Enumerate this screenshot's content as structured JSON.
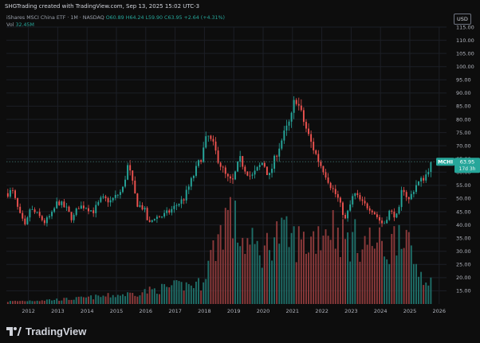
{
  "credit": "SHGTrading created with TradingView.com, Sep 13, 2025 15:02 UTC-3",
  "legend": {
    "title": "iShares MSCI China ETF · 1M · NASDAQ",
    "open": "O60.89",
    "high": "H64.24",
    "low": "L59.90",
    "close": "C63.95",
    "change": "+2.64 (+4.31%)",
    "vol_label": "Vol",
    "vol_value": "32.45M"
  },
  "currency_label": "USD",
  "brand": "TradingView",
  "colors": {
    "up": "#26a69a",
    "down": "#ef5350",
    "up_vol": "#1f6e68",
    "down_vol": "#8c3a3b",
    "background": "#0d0d0d",
    "grid": "#1c1f26",
    "price_tag": "#26a69a"
  },
  "chart_data": {
    "type": "candlestick",
    "title": "iShares MSCI China ETF · 1M · NASDAQ",
    "symbol": "MCHI",
    "last_price": "63.95",
    "countdown": "17d 3h",
    "price_axis": {
      "min": 10,
      "max": 115,
      "ticks": [
        15.0,
        20.0,
        25.0,
        30.0,
        35.0,
        40.0,
        45.0,
        50.0,
        55.0,
        60.0,
        65.0,
        70.0,
        75.0,
        80.0,
        85.0,
        90.0,
        95.0,
        100.0,
        105.0,
        110.0,
        115.0
      ],
      "tick_labels": [
        "15.00",
        "20.00",
        "25.00",
        "30.00",
        "35.00",
        "40.00",
        "45.00",
        "50.00",
        "55.00",
        "60.00",
        "65.00",
        "70.00",
        "75.00",
        "80.00",
        "85.00",
        "90.00",
        "95.00",
        "100.00",
        "105.00",
        "110.00",
        "115.00"
      ]
    },
    "x_axis": {
      "start": 2011.25,
      "end": 2026.25,
      "year_labels": [
        "2012",
        "2013",
        "2014",
        "2015",
        "2016",
        "2017",
        "2018",
        "2019",
        "2020",
        "2021",
        "2022",
        "2023",
        "2024",
        "2025",
        "2026"
      ]
    },
    "keypoints_price": [
      [
        2011.3,
        52
      ],
      [
        2011.45,
        53
      ],
      [
        2011.7,
        44
      ],
      [
        2011.9,
        39
      ],
      [
        2012.05,
        46
      ],
      [
        2012.3,
        44
      ],
      [
        2012.55,
        41
      ],
      [
        2012.8,
        44
      ],
      [
        2013.0,
        49
      ],
      [
        2013.3,
        46
      ],
      [
        2013.5,
        42
      ],
      [
        2013.7,
        47
      ],
      [
        2013.95,
        47
      ],
      [
        2014.2,
        45
      ],
      [
        2014.5,
        50
      ],
      [
        2014.8,
        49
      ],
      [
        2015.0,
        51
      ],
      [
        2015.2,
        53
      ],
      [
        2015.4,
        63
      ],
      [
        2015.5,
        58
      ],
      [
        2015.7,
        48
      ],
      [
        2015.95,
        46
      ],
      [
        2016.1,
        40
      ],
      [
        2016.3,
        43
      ],
      [
        2016.5,
        43
      ],
      [
        2016.8,
        45
      ],
      [
        2017.0,
        47
      ],
      [
        2017.3,
        50
      ],
      [
        2017.6,
        58
      ],
      [
        2017.9,
        66
      ],
      [
        2018.1,
        74
      ],
      [
        2018.3,
        70
      ],
      [
        2018.5,
        64
      ],
      [
        2018.75,
        58
      ],
      [
        2018.95,
        56
      ],
      [
        2019.2,
        65
      ],
      [
        2019.4,
        61
      ],
      [
        2019.6,
        58
      ],
      [
        2019.8,
        61
      ],
      [
        2020.0,
        64
      ],
      [
        2020.2,
        58
      ],
      [
        2020.45,
        67
      ],
      [
        2020.7,
        74
      ],
      [
        2020.95,
        80
      ],
      [
        2021.1,
        89
      ],
      [
        2021.3,
        82
      ],
      [
        2021.6,
        72
      ],
      [
        2021.9,
        64
      ],
      [
        2022.1,
        60
      ],
      [
        2022.3,
        55
      ],
      [
        2022.55,
        50
      ],
      [
        2022.8,
        42
      ],
      [
        2022.95,
        47
      ],
      [
        2023.1,
        52
      ],
      [
        2023.4,
        48
      ],
      [
        2023.7,
        46
      ],
      [
        2023.95,
        42
      ],
      [
        2024.1,
        40
      ],
      [
        2024.3,
        45
      ],
      [
        2024.6,
        43
      ],
      [
        2024.75,
        55
      ],
      [
        2024.95,
        49
      ],
      [
        2025.2,
        55
      ],
      [
        2025.4,
        57
      ],
      [
        2025.55,
        59
      ],
      [
        2025.72,
        63.95
      ]
    ],
    "keypoints_volume": [
      [
        2011.3,
        1
      ],
      [
        2013.5,
        2
      ],
      [
        2015.5,
        4
      ],
      [
        2017.0,
        7
      ],
      [
        2017.9,
        8
      ],
      [
        2018.0,
        12
      ],
      [
        2018.6,
        30
      ],
      [
        2018.8,
        37
      ],
      [
        2019.3,
        25
      ],
      [
        2020.0,
        20
      ],
      [
        2020.4,
        28
      ],
      [
        2021.0,
        25
      ],
      [
        2021.5,
        24
      ],
      [
        2022.0,
        29
      ],
      [
        2022.3,
        32
      ],
      [
        2022.8,
        25
      ],
      [
        2023.3,
        25
      ],
      [
        2023.8,
        24
      ],
      [
        2024.3,
        21
      ],
      [
        2024.75,
        34
      ],
      [
        2025.0,
        19
      ],
      [
        2025.4,
        12
      ],
      [
        2025.72,
        9
      ]
    ],
    "volume_scale_max": 60
  }
}
